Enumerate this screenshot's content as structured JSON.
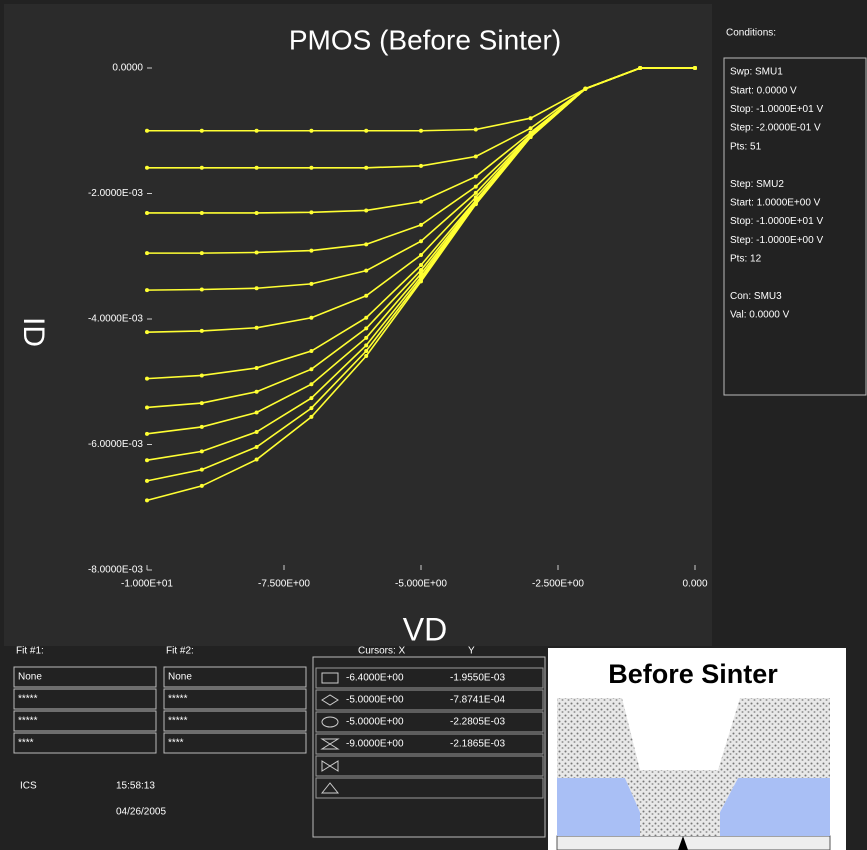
{
  "chart_data": {
    "type": "line",
    "title": "PMOS (Before Sinter)",
    "x_label": "VD",
    "y_label": "ID",
    "x": [
      0,
      -1,
      -2,
      -3,
      -4,
      -5,
      -6,
      -7,
      -8,
      -9,
      -10
    ],
    "series": [
      {
        "color": "#ffff33",
        "values": [
          0,
          0,
          -0.00033,
          -0.0008,
          -0.00098,
          -0.001,
          -0.001,
          -0.001,
          -0.001,
          -0.001,
          -0.001
        ]
      },
      {
        "color": "#ffff33",
        "values": [
          0,
          0,
          -0.00033,
          -0.00096,
          -0.00141,
          -0.00156,
          -0.00159,
          -0.00159,
          -0.00159,
          -0.00159,
          -0.00159
        ]
      },
      {
        "color": "#ffff33",
        "values": [
          0,
          0,
          -0.00033,
          -0.00103,
          -0.00173,
          -0.00213,
          -0.00227,
          -0.0023,
          -0.00231,
          -0.00231,
          -0.00231
        ]
      },
      {
        "color": "#ffff33",
        "values": [
          0,
          0,
          -0.00033,
          -0.00106,
          -0.00189,
          -0.0025,
          -0.00281,
          -0.00291,
          -0.00294,
          -0.00295,
          -0.00295
        ]
      },
      {
        "color": "#ffff33",
        "values": [
          0,
          0,
          -0.00033,
          -0.00107,
          -0.00199,
          -0.00276,
          -0.00323,
          -0.00344,
          -0.00351,
          -0.00353,
          -0.00354
        ]
      },
      {
        "color": "#ffff33",
        "values": [
          0,
          0,
          -0.00033,
          -0.00108,
          -0.00206,
          -0.00298,
          -0.00363,
          -0.00398,
          -0.00414,
          -0.00419,
          -0.00421
        ]
      },
      {
        "color": "#ffff33",
        "values": [
          0,
          0,
          -0.00033,
          -0.00109,
          -0.00211,
          -0.00314,
          -0.00398,
          -0.00451,
          -0.00478,
          -0.0049,
          -0.00495
        ]
      },
      {
        "color": "#ffff33",
        "values": [
          0,
          0,
          -0.00033,
          -0.00109,
          -0.00213,
          -0.00322,
          -0.00415,
          -0.0048,
          -0.00516,
          -0.00534,
          -0.00541
        ]
      },
      {
        "color": "#ffff33",
        "values": [
          0,
          0,
          -0.00033,
          -0.0011,
          -0.00215,
          -0.00328,
          -0.0043,
          -0.00504,
          -0.00549,
          -0.00572,
          -0.00583
        ]
      },
      {
        "color": "#ffff33",
        "values": [
          0,
          0,
          -0.00033,
          -0.00109,
          -0.00216,
          -0.00333,
          -0.00442,
          -0.00526,
          -0.0058,
          -0.00611,
          -0.00625
        ]
      },
      {
        "color": "#ffff33",
        "values": [
          0,
          0,
          -0.00033,
          -0.0011,
          -0.00217,
          -0.00337,
          -0.00451,
          -0.00542,
          -0.00604,
          -0.0064,
          -0.00658
        ]
      },
      {
        "color": "#ffff33",
        "values": [
          0,
          0,
          -0.00033,
          -0.0011,
          -0.00217,
          -0.0034,
          -0.00459,
          -0.00556,
          -0.00624,
          -0.00666,
          -0.00689
        ]
      }
    ],
    "xlim": [
      -10,
      0
    ],
    "ylim": [
      -0.008,
      0
    ],
    "xticks": [
      {
        "value": -10,
        "label": "-1.000E+01"
      },
      {
        "value": -7.5,
        "label": "-7.500E+00"
      },
      {
        "value": -5,
        "label": "-5.000E+00"
      },
      {
        "value": -2.5,
        "label": "-2.500E+00"
      },
      {
        "value": 0,
        "label": "0.000"
      }
    ],
    "yticks": [
      {
        "value": 0,
        "label": "0.0000"
      },
      {
        "value": -0.002,
        "label": "-2.0000E-03"
      },
      {
        "value": -0.004,
        "label": "-4.0000E-03"
      },
      {
        "value": -0.006,
        "label": "-6.0000E-03"
      },
      {
        "value": -0.008,
        "label": "-8.0000E-03"
      }
    ]
  },
  "conditions": {
    "heading": "Conditions:",
    "lines": [
      "Swp: SMU1",
      "Start: 0.0000 V",
      "Stop: -1.0000E+01 V",
      "Step: -2.0000E-01 V",
      "Pts: 51",
      "",
      "Step: SMU2",
      "Start: 1.0000E+00 V",
      "Stop: -1.0000E+01 V",
      "Step: -1.0000E+00 V",
      "Pts: 12",
      "",
      "Con: SMU3",
      "Val: 0.0000 V"
    ]
  },
  "fit1": {
    "title": "Fit #1:",
    "rows": [
      "None",
      "*****",
      "*****",
      "****"
    ]
  },
  "fit2": {
    "title": "Fit #2:",
    "rows": [
      "None",
      "*****",
      "*****",
      "****"
    ]
  },
  "cursors": {
    "header_x": "Cursors: X",
    "header_y": "Y",
    "rows": [
      [
        "-6.4000E+00",
        "-1.9550E-03"
      ],
      [
        "-5.0000E+00",
        "-7.8741E-04"
      ],
      [
        "-5.0000E+00",
        "-2.2805E-03"
      ],
      [
        "-9.0000E+00",
        "-2.1865E-03"
      ]
    ]
  },
  "footer": {
    "app": "ICS",
    "time": "15:58:13",
    "date": "04/26/2005"
  },
  "figure": {
    "title": "Before Sinter"
  }
}
